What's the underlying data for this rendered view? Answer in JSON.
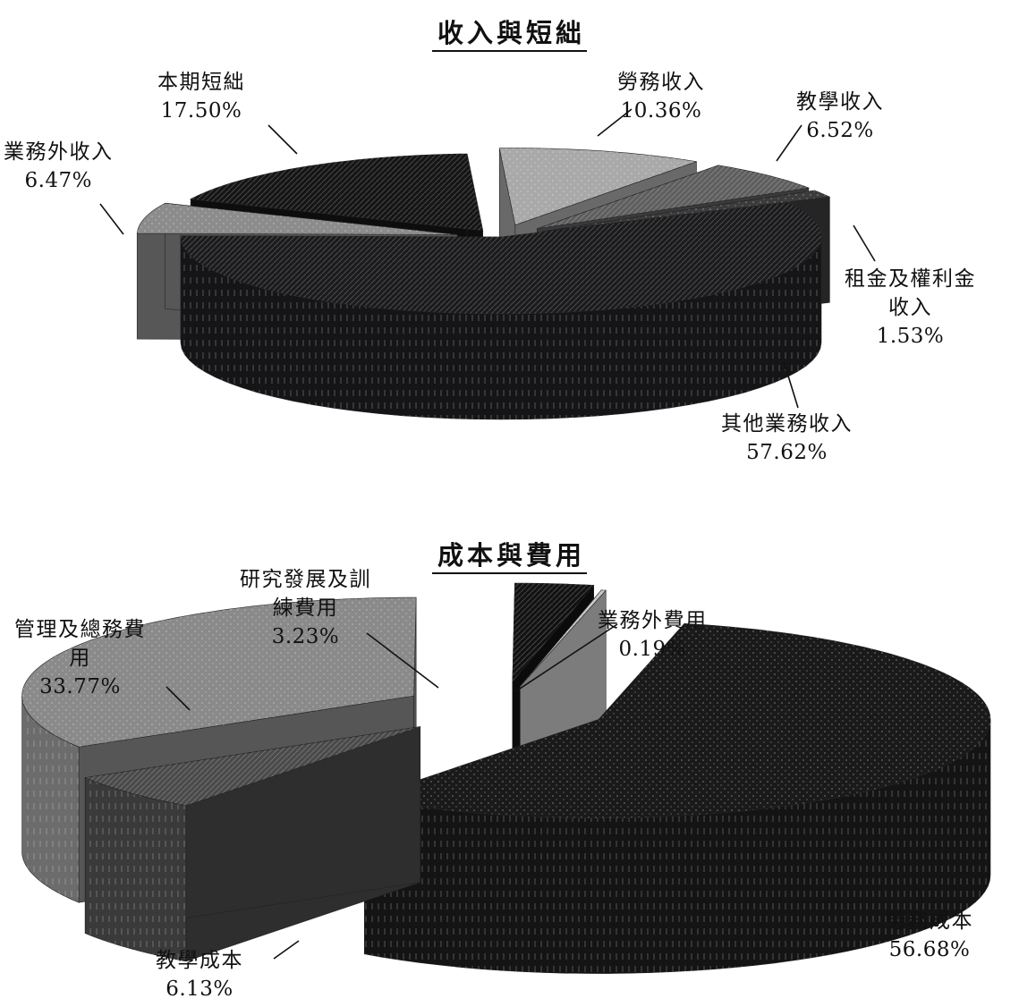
{
  "chart_data": [
    {
      "type": "pie",
      "title": "收入與短絀",
      "slices": [
        {
          "label": "勞務收入",
          "value": 10.36,
          "display": "10.36%",
          "color": "#a9a9a9"
        },
        {
          "label": "教學收入",
          "value": 6.52,
          "display": "6.52%",
          "color": "#5e5e5e"
        },
        {
          "label": "租金及權利金收入",
          "label_lines": [
            "租金及權利金",
            "收入"
          ],
          "value": 1.53,
          "display": "1.53%",
          "color": "#3c3c3c"
        },
        {
          "label": "其他業務收入",
          "value": 57.62,
          "display": "57.62%",
          "color": "#1b1b1d"
        },
        {
          "label": "業務外收入",
          "value": 6.47,
          "display": "6.47%",
          "color": "#8c8c8c"
        },
        {
          "label": "本期短絀",
          "value": 17.5,
          "display": "17.50%",
          "color": "#151515"
        }
      ]
    },
    {
      "type": "pie",
      "title": "成本與費用",
      "slices": [
        {
          "label": "勞務成本",
          "value": 56.68,
          "display": "56.68%",
          "color": "#1a1a1a"
        },
        {
          "label": "教學成本",
          "value": 6.13,
          "display": "6.13%",
          "color": "#4a4a4a"
        },
        {
          "label": "管理及總務費用",
          "label_lines": [
            "管理及總務費",
            "用"
          ],
          "value": 33.77,
          "display": "33.77%",
          "color": "#8a8a8a"
        },
        {
          "label": "研究發展及訓練費用",
          "label_lines": [
            "研究發展及訓",
            "練費用"
          ],
          "value": 3.23,
          "display": "3.23%",
          "color": "#121212"
        },
        {
          "label": "業務外費用",
          "value": 0.19,
          "display": "0.19%",
          "color": "#c8c8c8"
        }
      ]
    }
  ]
}
